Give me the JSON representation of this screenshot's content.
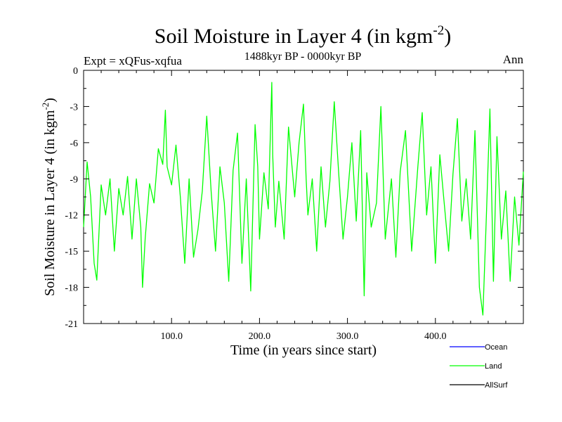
{
  "chart_data": {
    "type": "line",
    "title": "Soil Moisture in Layer 4 (in kgm",
    "title_sup": "-2",
    "title_close": ")",
    "subtitle": "1488kyr BP - 0000kyr BP",
    "expt_label": "Expt = xQFus-xqfua",
    "season_label": "Ann",
    "xlabel": "Time (in years since start)",
    "ylabel": "Soil Moisture in Layer 4 (in kgm",
    "ylabel_sup": "-2",
    "ylabel_close": ")",
    "xlim": [
      0,
      500
    ],
    "ylim": [
      -21,
      0
    ],
    "x_ticks": [
      100,
      200,
      300,
      400
    ],
    "x_tick_labels": [
      "100.0",
      "200.0",
      "300.0",
      "400.0"
    ],
    "y_ticks": [
      0,
      -3,
      -6,
      -9,
      -12,
      -15,
      -18,
      -21
    ],
    "y_tick_labels": [
      "0",
      "-3",
      "-6",
      "-9",
      "-12",
      "-15",
      "-18",
      "-21"
    ],
    "legend": [
      {
        "name": "Ocean",
        "color": "#0000ff"
      },
      {
        "name": "Land",
        "color": "#00ff00"
      },
      {
        "name": "AllSurf",
        "color": "#000000"
      }
    ],
    "series": [
      {
        "name": "Land",
        "color": "#00ff00",
        "x": [
          0,
          4,
          8,
          12,
          15,
          20,
          25,
          30,
          35,
          40,
          45,
          50,
          55,
          60,
          65,
          67,
          70,
          75,
          80,
          85,
          90,
          93,
          95,
          100,
          105,
          110,
          115,
          120,
          125,
          130,
          135,
          140,
          145,
          150,
          155,
          160,
          165,
          170,
          175,
          180,
          185,
          190,
          195,
          198,
          200,
          205,
          210,
          214,
          215,
          218,
          222,
          228,
          233,
          240,
          245,
          250,
          253,
          255,
          260,
          265,
          270,
          275,
          280,
          285,
          290,
          295,
          300,
          305,
          310,
          315,
          319,
          322,
          327,
          333,
          338,
          343,
          350,
          355,
          360,
          366,
          373,
          380,
          385,
          390,
          395,
          400,
          405,
          410,
          415,
          420,
          425,
          430,
          435,
          440,
          445,
          450,
          454,
          458,
          462,
          466,
          470,
          475,
          480,
          485,
          490,
          495,
          500
        ],
        "values": [
          -13,
          -7.6,
          -10.5,
          -16,
          -17.4,
          -9.5,
          -12,
          -9,
          -15,
          -9.8,
          -12,
          -8.8,
          -14,
          -9,
          -13,
          -18,
          -14,
          -9.4,
          -11,
          -6.5,
          -7.8,
          -3.3,
          -8,
          -9.5,
          -6.2,
          -10.5,
          -16,
          -9,
          -15.5,
          -13.2,
          -10,
          -3.8,
          -10,
          -15,
          -8,
          -11,
          -17.5,
          -8.3,
          -5.2,
          -16,
          -9,
          -18.3,
          -4.5,
          -8,
          -14,
          -8.5,
          -11.5,
          -1,
          -7,
          -13,
          -9.2,
          -14,
          -4.7,
          -10.5,
          -6,
          -2.8,
          -9,
          -12,
          -9,
          -15,
          -8,
          -13,
          -9.2,
          -2.6,
          -8.5,
          -14,
          -10.5,
          -6,
          -12.5,
          -5,
          -18.7,
          -8.5,
          -13,
          -11,
          -3,
          -14,
          -9,
          -15.5,
          -8.4,
          -5,
          -15,
          -8,
          -3.5,
          -12,
          -8,
          -16,
          -7,
          -11,
          -15,
          -8.6,
          -4,
          -12.5,
          -9,
          -14,
          -5,
          -18,
          -20.3,
          -12,
          -3.2,
          -17.5,
          -5.5,
          -14,
          -10,
          -17.5,
          -10.5,
          -14.5,
          -8.4
        ]
      }
    ]
  }
}
